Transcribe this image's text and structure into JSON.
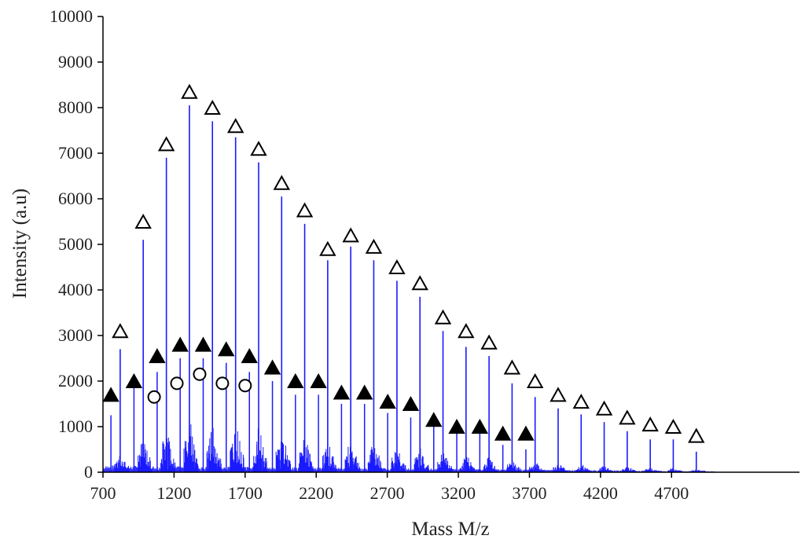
{
  "chart_data": {
    "type": "line",
    "title": "",
    "xlabel": "Mass M/z",
    "ylabel": "Intensity (a.u)",
    "xlim": [
      700,
      5600
    ],
    "ylim": [
      0,
      10000
    ],
    "grid": false,
    "x_ticks": [
      700,
      1200,
      1700,
      2200,
      2700,
      3200,
      3700,
      4200,
      4700
    ],
    "x_tick_labels": [
      "700",
      "1200",
      "1700",
      "2200",
      "2700",
      "3200",
      "3700",
      "4200",
      "4700"
    ],
    "y_ticks": [
      0,
      1000,
      2000,
      3000,
      4000,
      5000,
      6000,
      7000,
      8000,
      9000,
      10000
    ],
    "y_tick_labels": [
      "0",
      "1000",
      "2000",
      "3000",
      "4000",
      "5000",
      "6000",
      "7000",
      "8000",
      "9000",
      "10000"
    ],
    "spectrum_color": "#1a1aff",
    "main_peaks": {
      "x": [
        821,
        983,
        1146,
        1308,
        1470,
        1633,
        1795,
        1957,
        2119,
        2281,
        2443,
        2605,
        2768,
        2930,
        3092,
        3254,
        3416,
        3578,
        3740,
        3902,
        4064,
        4226,
        4388,
        4550,
        4712,
        4874
      ],
      "y": [
        2700,
        5100,
        6900,
        8050,
        7700,
        7350,
        6800,
        6050,
        5450,
        4650,
        4950,
        4650,
        4200,
        3850,
        3100,
        2750,
        2550,
        1950,
        1650,
        1400,
        1270,
        1100,
        900,
        720,
        720,
        450
      ]
    },
    "secondary_peaks": {
      "x": [
        756,
        918,
        1081,
        1243,
        1405,
        1567,
        1730,
        1892,
        2054,
        2216,
        2378,
        2540,
        2703,
        2865,
        3027,
        3189,
        3351,
        3513,
        3675
      ],
      "y": [
        1250,
        1900,
        2200,
        2500,
        2500,
        2400,
        2200,
        2000,
        1700,
        1700,
        1500,
        1500,
        1300,
        1200,
        1000,
        850,
        850,
        600,
        500
      ]
    },
    "series": [
      {
        "name": "",
        "marker": "open-triangle",
        "x": [
          821,
          983,
          1146,
          1308,
          1470,
          1633,
          1795,
          1957,
          2119,
          2281,
          2443,
          2605,
          2768,
          2930,
          3092,
          3254,
          3416,
          3578,
          3740,
          3902,
          4064,
          4226,
          4388,
          4550,
          4712,
          4874
        ],
        "y": [
          3100,
          5500,
          7200,
          8350,
          8000,
          7600,
          7100,
          6350,
          5750,
          4900,
          5200,
          4950,
          4500,
          4150,
          3400,
          3100,
          2850,
          2300,
          2000,
          1700,
          1550,
          1400,
          1200,
          1050,
          1000,
          800
        ]
      },
      {
        "name": "",
        "marker": "filled-triangle",
        "x": [
          756,
          918,
          1081,
          1243,
          1405,
          1567,
          1730,
          1892,
          2054,
          2216,
          2378,
          2540,
          2703,
          2865,
          3027,
          3189,
          3351,
          3513,
          3675
        ],
        "y": [
          1700,
          2000,
          2550,
          2800,
          2800,
          2700,
          2550,
          2300,
          2000,
          2000,
          1750,
          1750,
          1550,
          1500,
          1150,
          1000,
          1000,
          850,
          850
        ]
      },
      {
        "name": "",
        "marker": "open-circle",
        "x": [
          1060,
          1220,
          1380,
          1540,
          1700
        ],
        "y": [
          1650,
          1950,
          2150,
          1950,
          1900
        ]
      }
    ]
  }
}
